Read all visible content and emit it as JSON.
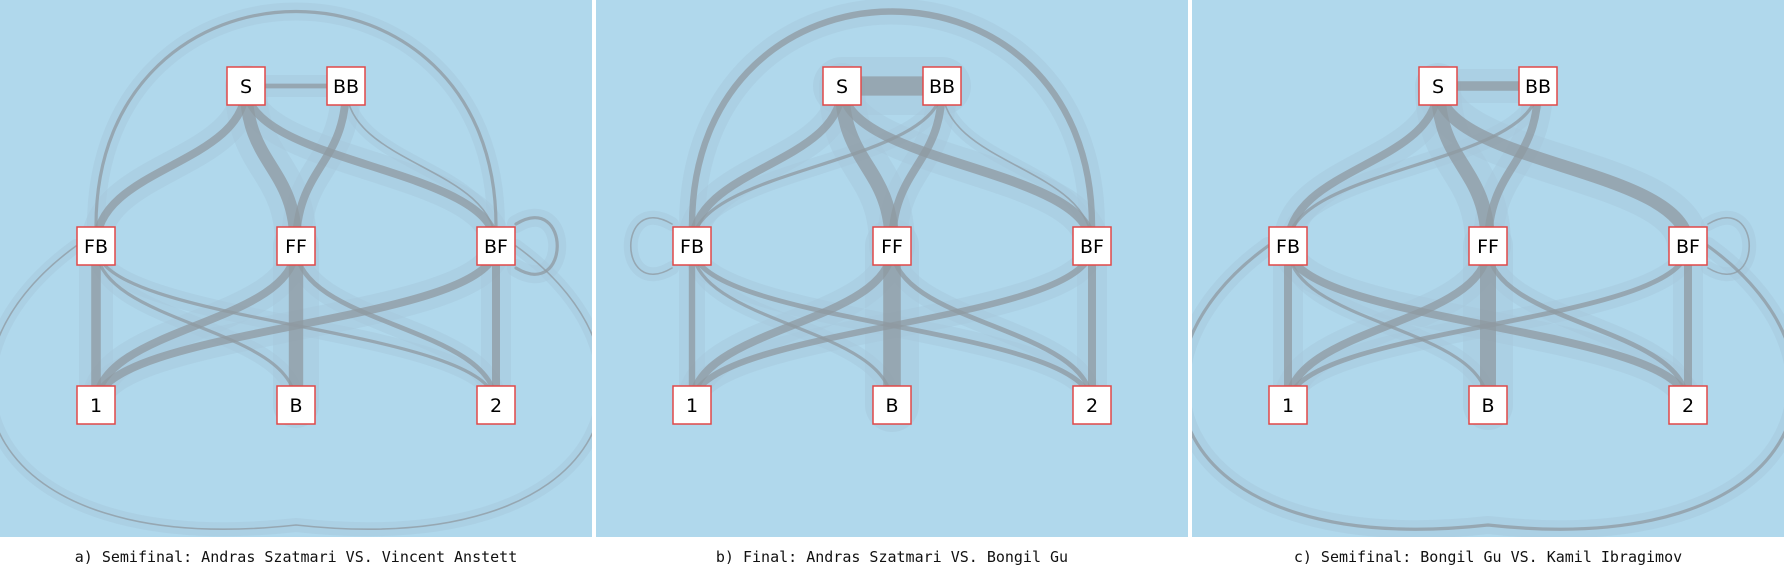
{
  "colors": {
    "panel_bg": "#b0d8ec",
    "edge": "#8f9aa2",
    "halo": "#a6c8dc",
    "node_fill": "#ffffff",
    "node_border": "#e04848"
  },
  "node_labels": {
    "S": "S",
    "BB": "BB",
    "FB": "FB",
    "FF": "FF",
    "BF": "BF",
    "one": "1",
    "B": "B",
    "two": "2"
  },
  "panels": [
    {
      "caption": "a) Semifinal: Andras Szatmari VS. Vincent Anstett",
      "edges": [
        {
          "from": "S",
          "to": "BB",
          "weight": 3
        },
        {
          "from": "S",
          "to": "FF",
          "weight": 8
        },
        {
          "from": "S",
          "to": "FB",
          "weight": 5
        },
        {
          "from": "S",
          "to": "BF",
          "weight": 5
        },
        {
          "from": "BB",
          "to": "FF",
          "weight": 5
        },
        {
          "from": "BB",
          "to": "BF",
          "weight": 1
        },
        {
          "from": "FB",
          "to": "one",
          "weight": 6
        },
        {
          "from": "FB",
          "to": "B",
          "weight": 2
        },
        {
          "from": "FB",
          "to": "two",
          "weight": 2
        },
        {
          "from": "FF",
          "to": "B",
          "weight": 9
        },
        {
          "from": "FF",
          "to": "one",
          "weight": 5
        },
        {
          "from": "FF",
          "to": "two",
          "weight": 3
        },
        {
          "from": "BF",
          "to": "two",
          "weight": 5
        },
        {
          "from": "BF",
          "to": "one",
          "weight": 5
        },
        {
          "from": "FB",
          "to": "BF",
          "weight": 2,
          "type": "arc-top"
        },
        {
          "from": "FB",
          "to": "BF",
          "weight": 1,
          "type": "arc-bottom"
        },
        {
          "from": "BF",
          "type": "loop-right",
          "weight": 2
        }
      ]
    },
    {
      "caption": "b) Final: Andras Szatmari VS. Bongil Gu",
      "edges": [
        {
          "from": "S",
          "to": "BB",
          "weight": 12
        },
        {
          "from": "S",
          "to": "FF",
          "weight": 9
        },
        {
          "from": "S",
          "to": "FB",
          "weight": 5
        },
        {
          "from": "S",
          "to": "BF",
          "weight": 6
        },
        {
          "from": "BB",
          "to": "FF",
          "weight": 5
        },
        {
          "from": "BB",
          "to": "BF",
          "weight": 1
        },
        {
          "from": "BB",
          "to": "FB",
          "weight": 2
        },
        {
          "from": "FB",
          "to": "one",
          "weight": 4
        },
        {
          "from": "FB",
          "to": "B",
          "weight": 2
        },
        {
          "from": "FB",
          "to": "two",
          "weight": 3
        },
        {
          "from": "FF",
          "to": "B",
          "weight": 11
        },
        {
          "from": "FF",
          "to": "one",
          "weight": 5
        },
        {
          "from": "FF",
          "to": "two",
          "weight": 3
        },
        {
          "from": "BF",
          "to": "two",
          "weight": 5
        },
        {
          "from": "BF",
          "to": "one",
          "weight": 4
        },
        {
          "from": "FB",
          "to": "BF",
          "weight": 4,
          "type": "arc-top"
        },
        {
          "from": "FB",
          "type": "loop-left",
          "weight": 1
        }
      ]
    },
    {
      "caption": "c) Semifinal: Bongil Gu VS. Kamil Ibragimov",
      "edges": [
        {
          "from": "S",
          "to": "BB",
          "weight": 6
        },
        {
          "from": "S",
          "to": "FF",
          "weight": 9
        },
        {
          "from": "S",
          "to": "FB",
          "weight": 5
        },
        {
          "from": "S",
          "to": "BF",
          "weight": 8
        },
        {
          "from": "BB",
          "to": "FF",
          "weight": 5
        },
        {
          "from": "BB",
          "to": "FB",
          "weight": 2
        },
        {
          "from": "FB",
          "to": "one",
          "weight": 5
        },
        {
          "from": "FB",
          "to": "B",
          "weight": 2
        },
        {
          "from": "FB",
          "to": "two",
          "weight": 5
        },
        {
          "from": "FF",
          "to": "B",
          "weight": 10
        },
        {
          "from": "FF",
          "to": "one",
          "weight": 5
        },
        {
          "from": "FF",
          "to": "two",
          "weight": 3
        },
        {
          "from": "BF",
          "to": "two",
          "weight": 5
        },
        {
          "from": "BF",
          "to": "one",
          "weight": 3
        },
        {
          "from": "FB",
          "to": "BF",
          "weight": 2,
          "type": "arc-bottom"
        },
        {
          "from": "BF",
          "type": "loop-right",
          "weight": 1
        }
      ]
    }
  ]
}
